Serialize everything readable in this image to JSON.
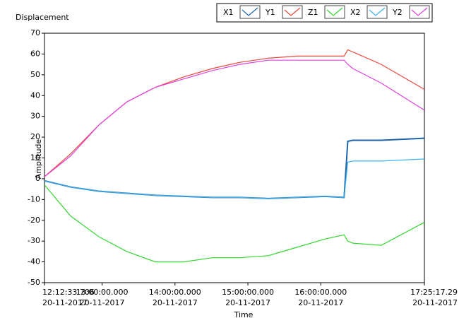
{
  "chart_data": {
    "type": "line",
    "title": "Displacement",
    "xlabel": "Time",
    "ylabel": "Amplitude",
    "x": [
      12.21,
      12.57,
      12.96,
      13.34,
      13.73,
      14.12,
      14.51,
      14.89,
      15.28,
      15.67,
      16.06,
      16.32,
      16.37,
      16.44,
      16.83,
      17.42
    ],
    "series": [
      {
        "name": "X1",
        "color": "#1f64a8",
        "values": [
          -1,
          -4,
          -6,
          -7,
          -8,
          -8.5,
          -9,
          -9,
          -9.5,
          -9,
          -8.5,
          -9,
          18,
          18.5,
          18.5,
          19.5
        ]
      },
      {
        "name": "Y1",
        "color": "#e8473a",
        "values": [
          1,
          12,
          26,
          37,
          44,
          49,
          53,
          56,
          58,
          59,
          59,
          59,
          62,
          61,
          55,
          43
        ]
      },
      {
        "name": "Z1",
        "color": "#33d62f",
        "values": [
          -3,
          -18,
          -28,
          -35,
          -40,
          -40,
          -38,
          -38,
          -37,
          -33,
          -29,
          -27,
          -30,
          -31,
          -32,
          -21
        ]
      },
      {
        "name": "X2",
        "color": "#3db3ef",
        "values": [
          -1,
          -4,
          -6,
          -7,
          -8,
          -8.5,
          -9,
          -9,
          -9.5,
          -9,
          -8.5,
          -9,
          8,
          8.5,
          8.5,
          9.5
        ]
      },
      {
        "name": "Y2",
        "color": "#e040e0",
        "values": [
          1,
          11,
          26,
          37,
          44,
          48,
          52,
          55,
          57,
          57,
          57,
          57,
          55,
          53,
          46,
          33
        ]
      }
    ],
    "xlim": [
      12.2094,
      17.4215
    ],
    "xticks": [
      {
        "value": 12.2094,
        "label": "12:12:33.706",
        "sublabel": "20-11-2017"
      },
      {
        "value": 13,
        "label": "13:00:00.000",
        "sublabel": "20-11-2017"
      },
      {
        "value": 14,
        "label": "14:00:00.000",
        "sublabel": "20-11-2017"
      },
      {
        "value": 15,
        "label": "15:00:00.000",
        "sublabel": "20-11-2017"
      },
      {
        "value": 16,
        "label": "16:00:00.000",
        "sublabel": "20-11-2017"
      },
      {
        "value": 17.4215,
        "label": "17:25:17.29",
        "sublabel": "20-11-2017"
      }
    ],
    "ylim": [
      -50,
      70
    ],
    "yticks": [
      -50,
      -40,
      -30,
      -20,
      -10,
      0,
      10,
      20,
      30,
      40,
      50,
      60,
      70
    ],
    "grid": false,
    "legend": "top"
  }
}
